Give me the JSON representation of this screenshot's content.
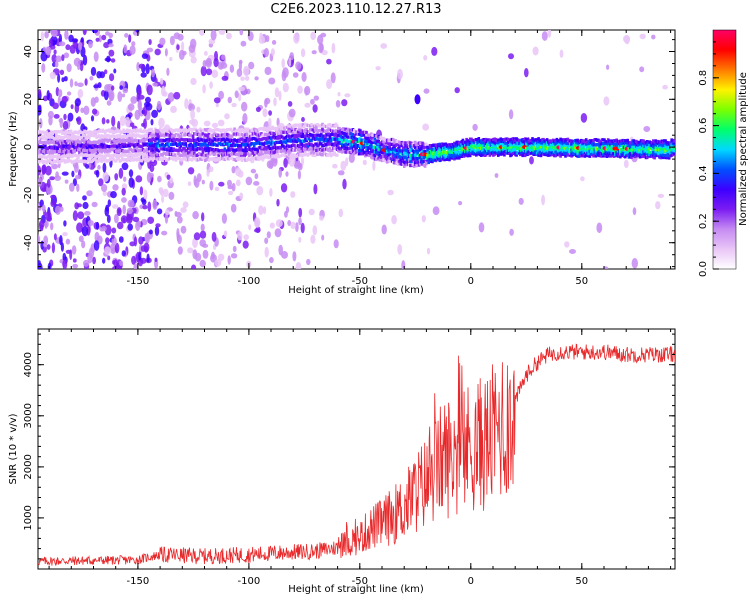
{
  "title": "C2E6.2023.110.12.27.R13",
  "colors": {
    "snr_line": "#e8292b",
    "axis": "#000000",
    "colormap": [
      "#ffffff",
      "#e9c6f7",
      "#c58bf2",
      "#7b1cf2",
      "#3c00ff",
      "#0050ff",
      "#00d8ff",
      "#00ff6a",
      "#7bff00",
      "#fff200",
      "#ff7a00",
      "#ff0000",
      "#ff0066"
    ]
  },
  "chart_data": [
    {
      "type": "heatmap",
      "xlabel": "Height of straight line (km)",
      "ylabel": "Frequency (Hz)",
      "xlim": [
        -195,
        92
      ],
      "ylim": [
        -51,
        49
      ],
      "x_ticks": [
        -150,
        -100,
        -50,
        0,
        50
      ],
      "y_ticks": [
        -40,
        -20,
        0,
        20,
        40
      ],
      "ridge_track": [
        {
          "x": -190,
          "y": 0
        },
        {
          "x": -140,
          "y": 1
        },
        {
          "x": -100,
          "y": 1
        },
        {
          "x": -75,
          "y": 3
        },
        {
          "x": -60,
          "y": 3
        },
        {
          "x": -50,
          "y": 2
        },
        {
          "x": -40,
          "y": -1
        },
        {
          "x": -30,
          "y": -3
        },
        {
          "x": -20,
          "y": -3
        },
        {
          "x": -10,
          "y": -2
        },
        {
          "x": 0,
          "y": 0
        },
        {
          "x": 30,
          "y": 0
        },
        {
          "x": 90,
          "y": -1
        }
      ],
      "colorbar": {
        "label": "Normalized spectral amplitude",
        "range": [
          0,
          1
        ],
        "ticks": [
          "0.0",
          "0.2",
          "0.4",
          "0.6",
          "0.8"
        ]
      }
    },
    {
      "type": "line",
      "xlabel": "Height of straight line (km)",
      "ylabel": "SNR (10 * v/v)",
      "xlim": [
        -195,
        92
      ],
      "ylim": [
        0,
        4700
      ],
      "x_ticks": [
        -150,
        -100,
        -50,
        0,
        50
      ],
      "y_ticks": [
        1000,
        2000,
        3000,
        4000
      ],
      "series": [
        {
          "x": [
            -195,
            -150,
            -140,
            -120,
            -100,
            -80,
            -70,
            -60,
            -50,
            -45,
            -40,
            -30,
            -25,
            -20,
            -15,
            -12,
            -10,
            -5,
            0,
            5,
            10,
            15,
            20,
            25,
            30,
            35,
            40,
            50,
            60,
            70,
            80,
            92
          ],
          "values": [
            150,
            180,
            280,
            250,
            280,
            330,
            350,
            420,
            620,
            800,
            900,
            1200,
            1500,
            1700,
            2000,
            2200,
            2200,
            2300,
            2400,
            2450,
            2600,
            2900,
            3300,
            3800,
            4050,
            4200,
            4250,
            4250,
            4250,
            4200,
            4200,
            4200
          ]
        }
      ]
    }
  ]
}
